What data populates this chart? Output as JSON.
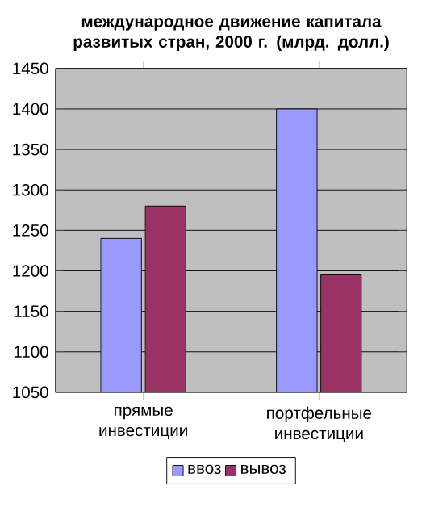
{
  "chart_data": {
    "type": "bar",
    "title": "международное движение капитала развитых стран, 2000 г. (млрд. долл.)",
    "categories": [
      "прямые инвестиции",
      "портфельные инвестиции"
    ],
    "series": [
      {
        "name": "ввоз",
        "color": "#9999ff",
        "values": [
          1240,
          1400
        ]
      },
      {
        "name": "вывоз",
        "color": "#993366",
        "values": [
          1280,
          1195
        ]
      }
    ],
    "ylim": [
      1050,
      1450
    ],
    "yticks": [
      1050,
      1100,
      1150,
      1200,
      1250,
      1300,
      1350,
      1400,
      1450
    ],
    "grid": "y",
    "legend": "bottom"
  }
}
